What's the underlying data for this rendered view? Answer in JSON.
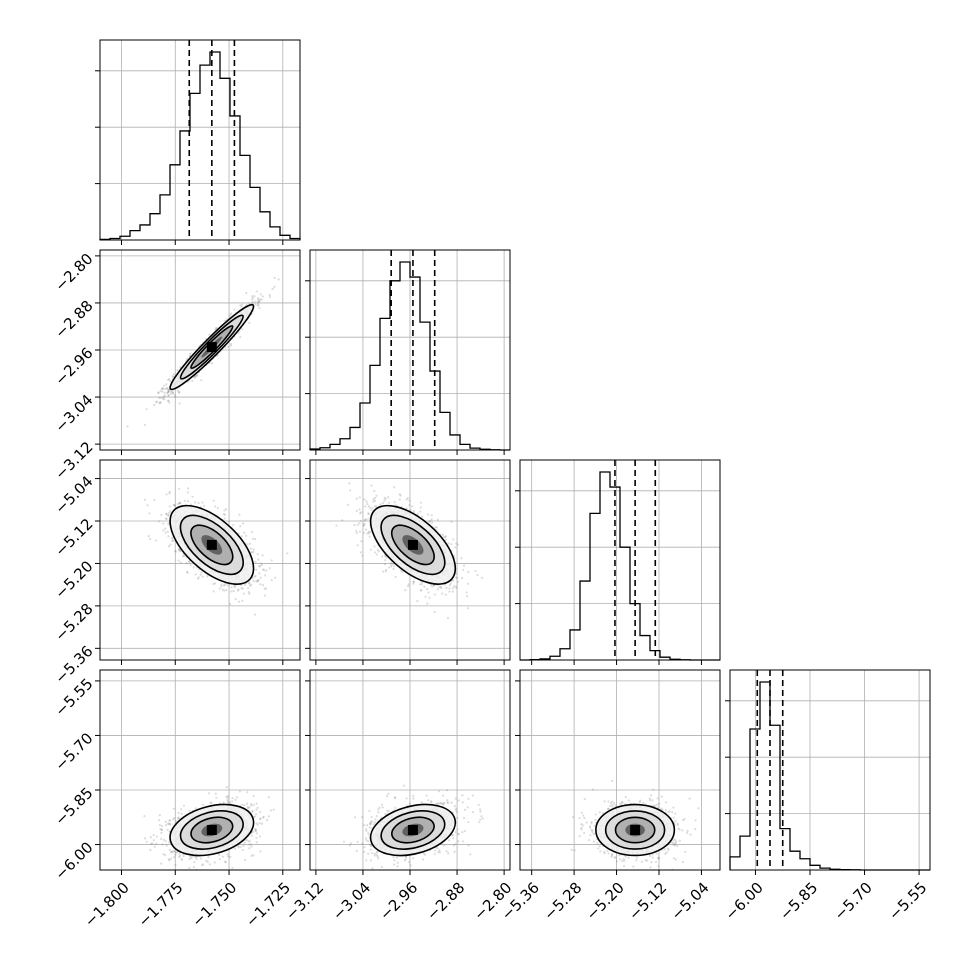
{
  "chart_data": {
    "type": "scatter",
    "title": "",
    "plot_kind": "corner",
    "parameters": [
      {
        "name": "",
        "range": [
          -1.81,
          -1.717
        ],
        "median": -1.758,
        "q16": -1.7685,
        "q84": -1.7475,
        "sd": 0.0097,
        "ticks": [
          -1.8,
          -1.775,
          -1.75,
          -1.725
        ],
        "tick_labels": [
          "−1.800",
          "−1.775",
          "−1.750",
          "−1.725"
        ]
      },
      {
        "name": "",
        "range": [
          -3.13,
          -2.79
        ],
        "median": -2.955,
        "q16": -2.992,
        "q84": -2.918,
        "sd": 0.036,
        "ticks": [
          -3.12,
          -3.04,
          -2.96,
          -2.88,
          -2.8
        ],
        "tick_labels": [
          "−3.12",
          "−3.04",
          "−2.96",
          "−2.88",
          "−2.80"
        ]
      },
      {
        "name": "",
        "range": [
          -5.382,
          -5.005
        ],
        "median": -5.165,
        "q16": -5.203,
        "q84": -5.127,
        "sd": 0.037,
        "ticks": [
          -5.36,
          -5.28,
          -5.2,
          -5.12,
          -5.04
        ],
        "tick_labels": [
          "−5.36",
          "−5.28",
          "−5.20",
          "−5.12",
          "−5.04"
        ]
      },
      {
        "name": "",
        "range": [
          -6.07,
          -5.52
        ],
        "median": -5.96,
        "q16": -5.995,
        "q84": -5.925,
        "sd": 0.035,
        "ticks": [
          -6.0,
          -5.85,
          -5.7,
          -5.55
        ],
        "tick_labels": [
          "−6.00",
          "−5.85",
          "−5.70",
          "−5.55"
        ]
      }
    ],
    "correlations": {
      "1-0": 0.96,
      "2-0": -0.6,
      "2-1": -0.6,
      "3-0": 0.3,
      "3-1": 0.3,
      "3-2": 0.0
    },
    "histograms": [
      [
        0.003,
        0.008,
        0.02,
        0.05,
        0.08,
        0.14,
        0.24,
        0.4,
        0.58,
        0.78,
        0.93,
        1.0,
        0.86,
        0.66,
        0.45,
        0.28,
        0.15,
        0.07,
        0.025,
        0.008
      ],
      [
        0.005,
        0.012,
        0.03,
        0.06,
        0.12,
        0.25,
        0.45,
        0.7,
        0.9,
        1.0,
        0.92,
        0.68,
        0.42,
        0.2,
        0.08,
        0.03,
        0.01,
        0.004,
        0.001,
        0.0
      ],
      [
        0.0,
        0.002,
        0.006,
        0.02,
        0.06,
        0.16,
        0.42,
        0.78,
        1.0,
        0.92,
        0.6,
        0.3,
        0.13,
        0.05,
        0.015,
        0.004,
        0.001,
        0.0,
        0.0,
        0.0
      ],
      [
        0.07,
        0.18,
        0.75,
        1.0,
        0.77,
        0.22,
        0.1,
        0.06,
        0.025,
        0.01,
        0.004,
        0.002,
        0.001,
        0.0,
        0.0,
        0.0,
        0.0,
        0.0,
        0.0,
        0.0
      ]
    ],
    "quantiles": [
      0.16,
      0.5,
      0.84
    ],
    "grid": true
  }
}
